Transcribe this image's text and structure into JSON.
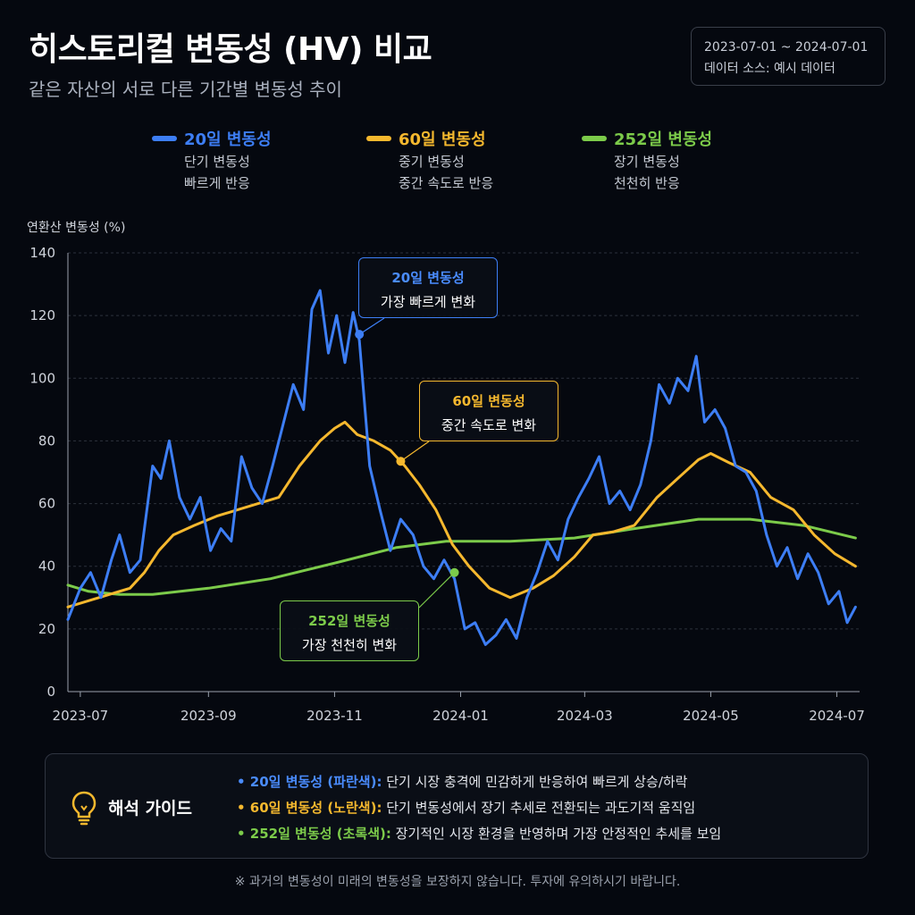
{
  "header": {
    "title": "히스토리컬 변동성 (HV) 비교",
    "subtitle": "같은 자산의 서로 다른 기간별 변동성 추이",
    "date_range": "2023-07-01 ~ 2024-07-01",
    "data_source": "데이터 소스: 예시 데이터"
  },
  "legend": [
    {
      "name": "20일 변동성",
      "desc1": "단기 변동성",
      "desc2": "빠르게 반응",
      "color": "#3d7ef5"
    },
    {
      "name": "60일 변동성",
      "desc1": "중기 변동성",
      "desc2": "중간 속도로 반응",
      "color": "#f5b82e"
    },
    {
      "name": "252일 변동성",
      "desc1": "장기 변동성",
      "desc2": "천천히 반응",
      "color": "#7ccb4a"
    }
  ],
  "annotations": [
    {
      "title": "20일 변동성",
      "text": "가장 빠르게 변화"
    },
    {
      "title": "60일 변동성",
      "text": "중간 속도로 변화"
    },
    {
      "title": "252일 변동성",
      "text": "가장 천천히 변화"
    }
  ],
  "guide": {
    "title": "해석 가이드",
    "items": [
      {
        "label": "• 20일 변동성 (파란색):",
        "text": " 단기 시장 충격에 민감하게 반응하여 빠르게 상승/하락",
        "color": "#4a8cff"
      },
      {
        "label": "• 60일 변동성 (노란색):",
        "text": " 단기 변동성에서 장기 추세로 전환되는 과도기적 움직임",
        "color": "#f5b82e"
      },
      {
        "label": "• 252일 변동성 (초록색):",
        "text": " 장기적인 시장 환경을 반영하며 가장 안정적인 추세를 보임",
        "color": "#7ccb4a"
      }
    ]
  },
  "footnote": "※ 과거의 변동성이 미래의 변동성을 보장하지 않습니다. 투자에 유의하시기 바랍니다.",
  "chart_data": {
    "type": "line",
    "ylabel": "연환산 변동성 (%)",
    "xlabel": "",
    "ylim": [
      0,
      140
    ],
    "yticks": [
      0,
      20,
      40,
      60,
      80,
      100,
      120,
      140
    ],
    "xlim": [
      "2023-06-25",
      "2024-07-12"
    ],
    "xticks": [
      "2023-07",
      "2023-09",
      "2023-11",
      "2024-01",
      "2024-03",
      "2024-05",
      "2024-07"
    ],
    "grid": true,
    "series": [
      {
        "name": "20일 변동성",
        "color": "#3d7ef5",
        "points": [
          [
            "2023-06-25",
            23
          ],
          [
            "2023-07-01",
            33
          ],
          [
            "2023-07-06",
            38
          ],
          [
            "2023-07-11",
            30
          ],
          [
            "2023-07-16",
            42
          ],
          [
            "2023-07-20",
            50
          ],
          [
            "2023-07-25",
            38
          ],
          [
            "2023-07-30",
            42
          ],
          [
            "2023-08-05",
            72
          ],
          [
            "2023-08-09",
            68
          ],
          [
            "2023-08-13",
            80
          ],
          [
            "2023-08-18",
            62
          ],
          [
            "2023-08-23",
            55
          ],
          [
            "2023-08-28",
            62
          ],
          [
            "2023-09-02",
            45
          ],
          [
            "2023-09-07",
            52
          ],
          [
            "2023-09-12",
            48
          ],
          [
            "2023-09-17",
            75
          ],
          [
            "2023-09-22",
            65
          ],
          [
            "2023-09-27",
            60
          ],
          [
            "2023-10-02",
            72
          ],
          [
            "2023-10-07",
            85
          ],
          [
            "2023-10-12",
            98
          ],
          [
            "2023-10-17",
            90
          ],
          [
            "2023-10-21",
            122
          ],
          [
            "2023-10-25",
            128
          ],
          [
            "2023-10-29",
            108
          ],
          [
            "2023-11-02",
            120
          ],
          [
            "2023-11-06",
            105
          ],
          [
            "2023-11-10",
            121
          ],
          [
            "2023-11-13",
            112
          ],
          [
            "2023-11-18",
            72
          ],
          [
            "2023-11-23",
            58
          ],
          [
            "2023-11-28",
            45
          ],
          [
            "2023-12-03",
            55
          ],
          [
            "2023-12-09",
            50
          ],
          [
            "2023-12-14",
            40
          ],
          [
            "2023-12-19",
            36
          ],
          [
            "2023-12-24",
            42
          ],
          [
            "2023-12-29",
            36
          ],
          [
            "2024-01-03",
            20
          ],
          [
            "2024-01-08",
            22
          ],
          [
            "2024-01-13",
            15
          ],
          [
            "2024-01-18",
            18
          ],
          [
            "2024-01-23",
            23
          ],
          [
            "2024-01-28",
            17
          ],
          [
            "2024-02-02",
            30
          ],
          [
            "2024-02-07",
            38
          ],
          [
            "2024-02-12",
            48
          ],
          [
            "2024-02-17",
            42
          ],
          [
            "2024-02-22",
            55
          ],
          [
            "2024-02-27",
            62
          ],
          [
            "2024-03-03",
            68
          ],
          [
            "2024-03-08",
            75
          ],
          [
            "2024-03-13",
            60
          ],
          [
            "2024-03-18",
            64
          ],
          [
            "2024-03-23",
            58
          ],
          [
            "2024-03-28",
            66
          ],
          [
            "2024-04-02",
            80
          ],
          [
            "2024-04-06",
            98
          ],
          [
            "2024-04-11",
            92
          ],
          [
            "2024-04-15",
            100
          ],
          [
            "2024-04-20",
            96
          ],
          [
            "2024-04-24",
            107
          ],
          [
            "2024-04-28",
            86
          ],
          [
            "2024-05-03",
            90
          ],
          [
            "2024-05-08",
            84
          ],
          [
            "2024-05-13",
            72
          ],
          [
            "2024-05-18",
            70
          ],
          [
            "2024-05-23",
            64
          ],
          [
            "2024-05-28",
            50
          ],
          [
            "2024-06-02",
            40
          ],
          [
            "2024-06-07",
            46
          ],
          [
            "2024-06-12",
            36
          ],
          [
            "2024-06-17",
            44
          ],
          [
            "2024-06-22",
            38
          ],
          [
            "2024-06-27",
            28
          ],
          [
            "2024-07-02",
            32
          ],
          [
            "2024-07-06",
            22
          ],
          [
            "2024-07-10",
            27
          ]
        ]
      },
      {
        "name": "60일 변동성",
        "color": "#f5b82e",
        "points": [
          [
            "2023-06-25",
            27
          ],
          [
            "2023-07-05",
            29
          ],
          [
            "2023-07-15",
            31
          ],
          [
            "2023-07-25",
            33
          ],
          [
            "2023-08-01",
            38
          ],
          [
            "2023-08-08",
            45
          ],
          [
            "2023-08-15",
            50
          ],
          [
            "2023-08-25",
            53
          ],
          [
            "2023-09-05",
            56
          ],
          [
            "2023-09-15",
            58
          ],
          [
            "2023-09-25",
            60
          ],
          [
            "2023-10-05",
            62
          ],
          [
            "2023-10-15",
            72
          ],
          [
            "2023-10-25",
            80
          ],
          [
            "2023-11-01",
            84
          ],
          [
            "2023-11-06",
            86
          ],
          [
            "2023-11-12",
            82
          ],
          [
            "2023-11-20",
            80
          ],
          [
            "2023-11-28",
            77
          ],
          [
            "2023-12-05",
            72
          ],
          [
            "2023-12-12",
            66
          ],
          [
            "2023-12-20",
            58
          ],
          [
            "2023-12-28",
            47
          ],
          [
            "2024-01-05",
            40
          ],
          [
            "2024-01-15",
            33
          ],
          [
            "2024-01-25",
            30
          ],
          [
            "2024-02-05",
            33
          ],
          [
            "2024-02-15",
            37
          ],
          [
            "2024-02-25",
            43
          ],
          [
            "2024-03-05",
            50
          ],
          [
            "2024-03-15",
            51
          ],
          [
            "2024-03-25",
            53
          ],
          [
            "2024-04-05",
            62
          ],
          [
            "2024-04-15",
            68
          ],
          [
            "2024-04-25",
            74
          ],
          [
            "2024-05-01",
            76
          ],
          [
            "2024-05-10",
            73
          ],
          [
            "2024-05-20",
            70
          ],
          [
            "2024-05-30",
            62
          ],
          [
            "2024-06-10",
            58
          ],
          [
            "2024-06-20",
            50
          ],
          [
            "2024-06-30",
            44
          ],
          [
            "2024-07-10",
            40
          ]
        ]
      },
      {
        "name": "252일 변동성",
        "color": "#7ccb4a",
        "points": [
          [
            "2023-06-25",
            34
          ],
          [
            "2023-07-05",
            32
          ],
          [
            "2023-07-20",
            31
          ],
          [
            "2023-08-05",
            31
          ],
          [
            "2023-09-01",
            33
          ],
          [
            "2023-10-01",
            36
          ],
          [
            "2023-11-01",
            41
          ],
          [
            "2023-12-01",
            46
          ],
          [
            "2023-12-25",
            48
          ],
          [
            "2024-01-25",
            48
          ],
          [
            "2024-02-25",
            49
          ],
          [
            "2024-03-25",
            52
          ],
          [
            "2024-04-25",
            55
          ],
          [
            "2024-05-20",
            55
          ],
          [
            "2024-06-15",
            53
          ],
          [
            "2024-07-10",
            49
          ]
        ]
      }
    ]
  }
}
